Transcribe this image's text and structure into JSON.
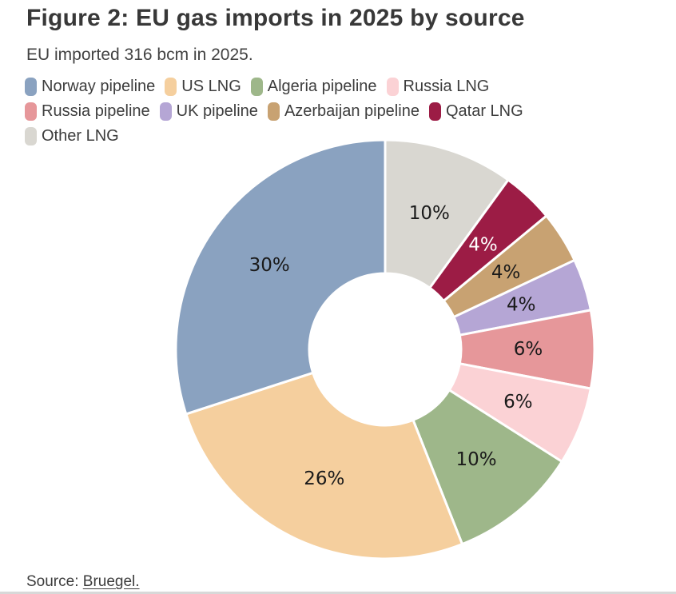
{
  "header": {
    "title": "Figure 2: EU gas imports in 2025 by source",
    "subtitle": "EU imported 316 bcm in 2025."
  },
  "source": {
    "prefix": "Source: ",
    "link_text": "Bruegel."
  },
  "chart_data": {
    "type": "pie",
    "variant": "donut",
    "title": "Figure 2: EU gas imports in 2025 by source",
    "subtitle": "EU imported 316 bcm in 2025.",
    "unit": "%",
    "total_bcm_shown_in_subtitle": 316,
    "legend_position": "top",
    "slices": [
      {
        "label": "Norway pipeline",
        "value": 30,
        "display": "30%",
        "color": "#8aa2c0",
        "label_color": "#1a1a1a"
      },
      {
        "label": "US LNG",
        "value": 26,
        "display": "26%",
        "color": "#f5cf9e",
        "label_color": "#1a1a1a"
      },
      {
        "label": "Algeria pipeline",
        "value": 10,
        "display": "10%",
        "color": "#9eb78a",
        "label_color": "#1a1a1a"
      },
      {
        "label": "Russia LNG",
        "value": 6,
        "display": "6%",
        "color": "#fbd2d5",
        "label_color": "#1a1a1a"
      },
      {
        "label": "Russia pipeline",
        "value": 6,
        "display": "6%",
        "color": "#e6979a",
        "label_color": "#1a1a1a"
      },
      {
        "label": "UK pipeline",
        "value": 4,
        "display": "4%",
        "color": "#b5a6d5",
        "label_color": "#1a1a1a"
      },
      {
        "label": "Azerbaijan pipeline",
        "value": 4,
        "display": "4%",
        "color": "#c8a272",
        "label_color": "#1a1a1a"
      },
      {
        "label": "Qatar LNG",
        "value": 4,
        "display": "4%",
        "color": "#9c1c45",
        "label_color": "#ffffff"
      },
      {
        "label": "Other LNG",
        "value": 10,
        "display": "10%",
        "color": "#d9d7d1",
        "label_color": "#1a1a1a"
      }
    ]
  }
}
